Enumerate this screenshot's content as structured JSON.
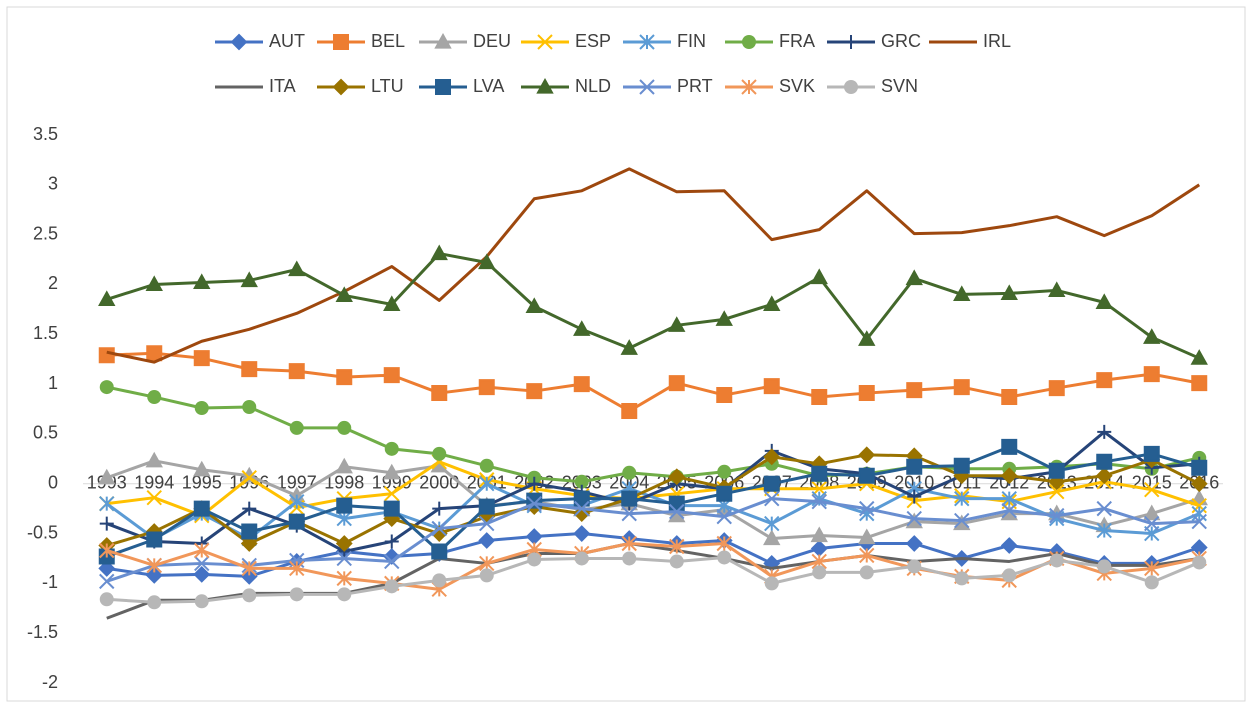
{
  "chart_data": {
    "type": "line",
    "categories": [
      "1993",
      "1994",
      "1995",
      "1996",
      "1997",
      "1998",
      "1999",
      "2000",
      "2001",
      "2002",
      "2003",
      "2004",
      "2005",
      "2006",
      "2007",
      "2008",
      "2009",
      "2010",
      "2011",
      "2012",
      "2013",
      "2014",
      "2015",
      "2016"
    ],
    "ylim": [
      -2,
      3.5
    ],
    "yticks": [
      -2,
      -1.5,
      -1,
      -0.5,
      0,
      0.5,
      1,
      1.5,
      2,
      2.5,
      3,
      3.5
    ],
    "grid": false,
    "legend": "top",
    "series": [
      {
        "name": "AUT",
        "color": "#4472c4",
        "marker": "diamond",
        "values": [
          -0.85,
          -0.92,
          -0.91,
          -0.93,
          -0.78,
          -0.68,
          -0.73,
          -0.7,
          -0.57,
          -0.53,
          -0.5,
          -0.55,
          -0.6,
          -0.57,
          -0.8,
          -0.65,
          -0.6,
          -0.6,
          -0.75,
          -0.62,
          -0.68,
          -0.8,
          -0.8,
          -0.64
        ]
      },
      {
        "name": "BEL",
        "color": "#ed7d31",
        "marker": "square",
        "values": [
          1.29,
          1.31,
          1.26,
          1.15,
          1.13,
          1.07,
          1.09,
          0.91,
          0.97,
          0.93,
          1.0,
          0.73,
          1.01,
          0.89,
          0.98,
          0.87,
          0.91,
          0.94,
          0.97,
          0.87,
          0.96,
          1.04,
          1.1,
          1.01
        ]
      },
      {
        "name": "DEU",
        "color": "#a5a5a5",
        "marker": "triangle",
        "values": [
          0.06,
          0.23,
          0.14,
          0.08,
          -0.12,
          0.17,
          0.11,
          0.18,
          -0.22,
          -0.18,
          -0.26,
          -0.2,
          -0.32,
          -0.26,
          -0.55,
          -0.52,
          -0.54,
          -0.38,
          -0.4,
          -0.3,
          -0.3,
          -0.42,
          -0.3,
          -0.15
        ]
      },
      {
        "name": "ESP",
        "color": "#ffc000",
        "marker": "x",
        "values": [
          -0.2,
          -0.14,
          -0.32,
          0.06,
          -0.24,
          -0.15,
          -0.1,
          0.22,
          0.04,
          -0.05,
          -0.12,
          -0.15,
          -0.1,
          -0.05,
          -0.05,
          -0.05,
          0,
          -0.17,
          -0.12,
          -0.18,
          -0.08,
          0.02,
          -0.06,
          -0.22
        ]
      },
      {
        "name": "FIN",
        "color": "#5b9bd5",
        "marker": "star",
        "values": [
          -0.2,
          -0.55,
          -0.3,
          -0.55,
          -0.18,
          -0.35,
          -0.28,
          -0.45,
          0,
          -0.22,
          -0.22,
          -0.05,
          -0.22,
          -0.22,
          -0.4,
          -0.15,
          -0.3,
          -0.05,
          -0.15,
          -0.15,
          -0.35,
          -0.47,
          -0.5,
          -0.3
        ]
      },
      {
        "name": "FRA",
        "color": "#70ad47",
        "marker": "circle",
        "values": [
          0.97,
          0.87,
          0.76,
          0.77,
          0.56,
          0.56,
          0.35,
          0.3,
          0.18,
          0.06,
          0.02,
          0.11,
          0.07,
          0.12,
          0.2,
          0.08,
          0.1,
          0.17,
          0.15,
          0.15,
          0.17,
          0.2,
          0.15,
          0.26
        ]
      },
      {
        "name": "GRC",
        "color": "#264478",
        "marker": "plus",
        "values": [
          -0.4,
          -0.58,
          -0.6,
          -0.25,
          -0.42,
          -0.68,
          -0.58,
          -0.25,
          -0.22,
          0,
          -0.08,
          -0.2,
          0,
          -0.05,
          0.33,
          0.15,
          0.1,
          -0.13,
          0.08,
          0.05,
          0.12,
          0.52,
          0.16,
          0.2
        ]
      },
      {
        "name": "IRL",
        "color": "#9e480e",
        "marker": "none",
        "values": [
          1.32,
          1.22,
          1.43,
          1.55,
          1.71,
          1.93,
          2.18,
          1.84,
          2.28,
          2.86,
          2.94,
          3.16,
          2.93,
          2.94,
          2.45,
          2.55,
          2.94,
          2.51,
          2.52,
          2.59,
          2.68,
          2.49,
          2.69,
          3.0
        ]
      },
      {
        "name": "ITA",
        "color": "#636363",
        "marker": "none",
        "values": [
          -1.35,
          -1.17,
          -1.17,
          -1.1,
          -1.1,
          -1.1,
          -1.0,
          -0.75,
          -0.8,
          -0.7,
          -0.7,
          -0.6,
          -0.67,
          -0.75,
          -0.85,
          -0.78,
          -0.72,
          -0.78,
          -0.75,
          -0.78,
          -0.7,
          -0.82,
          -0.82,
          -0.75
        ]
      },
      {
        "name": "LTU",
        "color": "#997300",
        "marker": "diamond",
        "values": [
          -0.62,
          -0.48,
          -0.25,
          -0.6,
          -0.38,
          -0.6,
          -0.35,
          -0.5,
          -0.33,
          -0.23,
          -0.3,
          -0.15,
          0.07,
          -0.04,
          0.27,
          0.2,
          0.29,
          0.28,
          0.08,
          0.08,
          0.02,
          0.08,
          0.24,
          0.0
        ]
      },
      {
        "name": "LVA",
        "color": "#255e91",
        "marker": "square",
        "values": [
          -0.73,
          -0.56,
          -0.25,
          -0.48,
          -0.38,
          -0.22,
          -0.25,
          -0.68,
          -0.23,
          -0.17,
          -0.15,
          -0.15,
          -0.2,
          -0.1,
          0.0,
          0.1,
          0.08,
          0.17,
          0.18,
          0.37,
          0.13,
          0.22,
          0.3,
          0.16
        ]
      },
      {
        "name": "NLD",
        "color": "#43682b",
        "marker": "triangle",
        "values": [
          1.85,
          2.0,
          2.02,
          2.04,
          2.15,
          1.89,
          1.8,
          2.31,
          2.22,
          1.78,
          1.55,
          1.36,
          1.59,
          1.65,
          1.8,
          2.07,
          1.45,
          2.06,
          1.9,
          1.91,
          1.94,
          1.82,
          1.47,
          1.26
        ]
      },
      {
        "name": "PRT",
        "color": "#698ed0",
        "marker": "x",
        "values": [
          -0.98,
          -0.82,
          -0.8,
          -0.82,
          -0.77,
          -0.75,
          -0.78,
          -0.45,
          -0.4,
          -0.2,
          -0.25,
          -0.3,
          -0.28,
          -0.33,
          -0.15,
          -0.18,
          -0.25,
          -0.35,
          -0.37,
          -0.27,
          -0.32,
          -0.25,
          -0.4,
          -0.38
        ]
      },
      {
        "name": "SVK",
        "color": "#f1975a",
        "marker": "star",
        "values": [
          -0.67,
          -0.82,
          -0.67,
          -0.85,
          -0.85,
          -0.95,
          -1.0,
          -1.06,
          -0.8,
          -0.66,
          -0.7,
          -0.6,
          -0.63,
          -0.6,
          -0.93,
          -0.78,
          -0.72,
          -0.85,
          -0.93,
          -0.97,
          -0.75,
          -0.9,
          -0.85,
          -0.75
        ]
      },
      {
        "name": "SVN",
        "color": "#b7b7b7",
        "marker": "circle",
        "values": [
          -1.16,
          -1.19,
          -1.18,
          -1.12,
          -1.11,
          -1.11,
          -1.03,
          -0.97,
          -0.92,
          -0.76,
          -0.75,
          -0.75,
          -0.78,
          -0.74,
          -1.0,
          -0.89,
          -0.89,
          -0.83,
          -0.95,
          -0.92,
          -0.77,
          -0.83,
          -0.99,
          -0.79
        ]
      }
    ]
  }
}
